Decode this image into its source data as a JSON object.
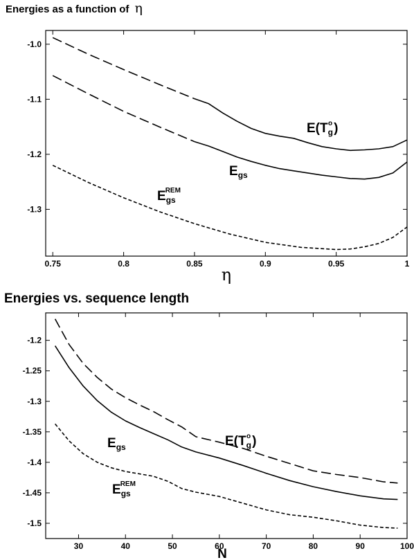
{
  "chart_data": [
    {
      "type": "line",
      "title": "Energies as a function of",
      "title_symbol": "η",
      "xlabel": "η",
      "ylabel": "",
      "xlim": [
        0.745,
        1.0
      ],
      "ylim": [
        -1.385,
        -0.975
      ],
      "xticks": [
        "0.75",
        "0.8",
        "0.85",
        "0.9",
        "0.95",
        "1"
      ],
      "xtick_values": [
        0.75,
        0.8,
        0.85,
        0.9,
        0.95,
        1.0
      ],
      "yticks": [
        "-1.0",
        "-1.1",
        "-1.2",
        "-1.3"
      ],
      "ytick_values": [
        -1.0,
        -1.1,
        -1.2,
        -1.3
      ],
      "grid": false,
      "series": [
        {
          "name": "E(T_g^o)",
          "label": {
            "base": "E(T",
            "sub": "g",
            "sup": "o",
            "tail": ")"
          },
          "segments": [
            {
              "style": "dashed",
              "x": [
                0.75,
                0.775,
                0.8,
                0.825,
                0.85
              ],
              "y": [
                -0.988,
                -1.018,
                -1.046,
                -1.073,
                -1.099
              ]
            },
            {
              "style": "solid",
              "x": [
                0.85,
                0.86,
                0.87,
                0.88,
                0.89,
                0.9,
                0.91,
                0.92,
                0.93,
                0.94,
                0.95,
                0.96,
                0.97,
                0.98,
                0.99,
                1.0
              ],
              "y": [
                -1.099,
                -1.108,
                -1.125,
                -1.14,
                -1.153,
                -1.162,
                -1.167,
                -1.171,
                -1.179,
                -1.186,
                -1.19,
                -1.193,
                -1.192,
                -1.19,
                -1.186,
                -1.174
              ]
            }
          ]
        },
        {
          "name": "E_gs",
          "label": {
            "base": "E",
            "sub": "gs"
          },
          "segments": [
            {
              "style": "dashed",
              "x": [
                0.75,
                0.775,
                0.8,
                0.825,
                0.85
              ],
              "y": [
                -1.057,
                -1.09,
                -1.122,
                -1.15,
                -1.177
              ]
            },
            {
              "style": "solid",
              "x": [
                0.85,
                0.86,
                0.87,
                0.88,
                0.89,
                0.9,
                0.91,
                0.92,
                0.93,
                0.94,
                0.95,
                0.96,
                0.97,
                0.98,
                0.99,
                1.0
              ],
              "y": [
                -1.177,
                -1.185,
                -1.195,
                -1.205,
                -1.213,
                -1.22,
                -1.226,
                -1.23,
                -1.234,
                -1.238,
                -1.241,
                -1.244,
                -1.245,
                -1.242,
                -1.234,
                -1.214
              ]
            }
          ]
        },
        {
          "name": "E_gs^REM",
          "label": {
            "base": "E",
            "sub": "gs",
            "sup": "REM"
          },
          "segments": [
            {
              "style": "dotted",
              "x": [
                0.75,
                0.775,
                0.8,
                0.825,
                0.85,
                0.875,
                0.9,
                0.925,
                0.95,
                0.96,
                0.97,
                0.98,
                0.99,
                1.0
              ],
              "y": [
                -1.22,
                -1.251,
                -1.279,
                -1.304,
                -1.326,
                -1.345,
                -1.36,
                -1.369,
                -1.373,
                -1.372,
                -1.368,
                -1.362,
                -1.351,
                -1.332
              ]
            }
          ]
        }
      ]
    },
    {
      "type": "line",
      "title": "Energies vs. sequence length",
      "xlabel": "N",
      "ylabel": "",
      "xlim": [
        23,
        100
      ],
      "ylim": [
        -1.525,
        -1.155
      ],
      "xticks": [
        "30",
        "40",
        "50",
        "60",
        "70",
        "80",
        "90",
        "100"
      ],
      "xtick_values": [
        30,
        40,
        50,
        60,
        70,
        80,
        90,
        100
      ],
      "yticks": [
        "-1.2",
        "-1.25",
        "-1.3",
        "-1.35",
        "-1.4",
        "-1.45",
        "-1.5"
      ],
      "ytick_values": [
        -1.2,
        -1.25,
        -1.3,
        -1.35,
        -1.4,
        -1.45,
        -1.5
      ],
      "grid": false,
      "series": [
        {
          "name": "E(T_g^o)",
          "label": {
            "base": "E(T",
            "sub": "g",
            "sup": "o",
            "tail": ")"
          },
          "segments": [
            {
              "style": "dashed",
              "x": [
                25,
                28,
                31,
                34,
                37,
                40,
                43,
                46,
                49,
                52,
                55,
                60,
                65,
                70,
                75,
                80,
                85,
                90,
                95,
                98
              ],
              "y": [
                -1.165,
                -1.207,
                -1.238,
                -1.261,
                -1.28,
                -1.294,
                -1.306,
                -1.317,
                -1.33,
                -1.342,
                -1.358,
                -1.367,
                -1.377,
                -1.39,
                -1.402,
                -1.414,
                -1.42,
                -1.425,
                -1.432,
                -1.434
              ]
            }
          ]
        },
        {
          "name": "E_gs",
          "label": {
            "base": "E",
            "sub": "gs"
          },
          "segments": [
            {
              "style": "solid",
              "x": [
                25,
                28,
                31,
                34,
                37,
                40,
                43,
                46,
                49,
                52,
                55,
                60,
                65,
                70,
                75,
                80,
                85,
                90,
                95,
                98
              ],
              "y": [
                -1.209,
                -1.245,
                -1.275,
                -1.299,
                -1.318,
                -1.332,
                -1.343,
                -1.353,
                -1.363,
                -1.375,
                -1.383,
                -1.393,
                -1.405,
                -1.418,
                -1.43,
                -1.44,
                -1.448,
                -1.455,
                -1.46,
                -1.461
              ]
            }
          ]
        },
        {
          "name": "E_gs^REM",
          "label": {
            "base": "E",
            "sub": "gs",
            "sup": "REM"
          },
          "segments": [
            {
              "style": "dotted",
              "x": [
                25,
                28,
                31,
                34,
                37,
                40,
                43,
                46,
                49,
                52,
                55,
                60,
                65,
                70,
                75,
                80,
                85,
                90,
                95,
                98
              ],
              "y": [
                -1.337,
                -1.365,
                -1.386,
                -1.4,
                -1.409,
                -1.415,
                -1.419,
                -1.423,
                -1.431,
                -1.443,
                -1.449,
                -1.456,
                -1.467,
                -1.478,
                -1.486,
                -1.49,
                -1.496,
                -1.503,
                -1.507,
                -1.508
              ]
            }
          ]
        }
      ]
    }
  ]
}
